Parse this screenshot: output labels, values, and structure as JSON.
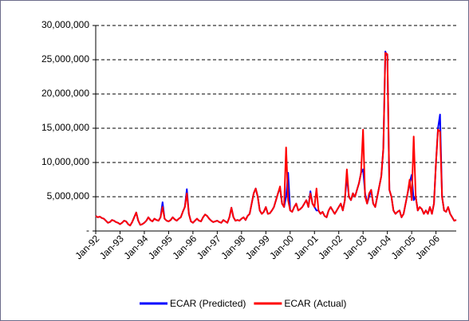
{
  "chart_data": {
    "type": "line",
    "categories": [
      "Jan-92",
      null,
      null,
      null,
      null,
      null,
      null,
      null,
      null,
      null,
      null,
      null,
      "Jan-93",
      null,
      null,
      null,
      null,
      null,
      null,
      null,
      null,
      null,
      null,
      null,
      "Jan-94",
      null,
      null,
      null,
      null,
      null,
      null,
      null,
      null,
      null,
      null,
      null,
      "Jan-95",
      null,
      null,
      null,
      null,
      null,
      null,
      null,
      null,
      null,
      null,
      null,
      "Jan-96",
      null,
      null,
      null,
      null,
      null,
      null,
      null,
      null,
      null,
      null,
      null,
      "Jan-97",
      null,
      null,
      null,
      null,
      null,
      null,
      null,
      null,
      null,
      null,
      null,
      "Jan-98",
      null,
      null,
      null,
      null,
      null,
      null,
      null,
      null,
      null,
      null,
      null,
      "Jan-99",
      null,
      null,
      null,
      null,
      null,
      null,
      null,
      null,
      null,
      null,
      null,
      "Jan-00",
      null,
      null,
      null,
      null,
      null,
      null,
      null,
      null,
      null,
      null,
      null,
      "Jan-01",
      null,
      null,
      null,
      null,
      null,
      null,
      null,
      null,
      null,
      null,
      null,
      "Jan-02",
      null,
      null,
      null,
      null,
      null,
      null,
      null,
      null,
      null,
      null,
      null,
      "Jan-03",
      null,
      null,
      null,
      null,
      null,
      null,
      null,
      null,
      null,
      null,
      null,
      "Jan-04",
      null,
      null,
      null,
      null,
      null,
      null,
      null,
      null,
      null,
      null,
      null,
      "Jan-05",
      null,
      null,
      null,
      null,
      null,
      null,
      null,
      null,
      null,
      null,
      null,
      "Jan-06",
      null,
      null,
      null,
      null,
      null,
      null,
      null,
      null,
      null,
      null
    ],
    "series": [
      {
        "name": "ECAR (Predicted)",
        "color": "#0000ff",
        "values": [
          2200000,
          2000000,
          2100000,
          1900000,
          1800000,
          1500000,
          1200000,
          1300000,
          1600000,
          1500000,
          1300000,
          1200000,
          1000000,
          1200000,
          1500000,
          1400000,
          1000000,
          800000,
          1300000,
          2000000,
          2700000,
          1500000,
          900000,
          1000000,
          1200000,
          1500000,
          2000000,
          1600000,
          1400000,
          1800000,
          1600000,
          1500000,
          2000000,
          4200000,
          1800000,
          1500000,
          1400000,
          1600000,
          2000000,
          1700000,
          1500000,
          1800000,
          2000000,
          2800000,
          3500000,
          6100000,
          2500000,
          1400000,
          1200000,
          1500000,
          1800000,
          1500000,
          1400000,
          2000000,
          2400000,
          2200000,
          1800000,
          1500000,
          1300000,
          1400000,
          1500000,
          1300000,
          1200000,
          1600000,
          1400000,
          1200000,
          2000000,
          3400000,
          2000000,
          1500000,
          1600000,
          1500000,
          1800000,
          2000000,
          1600000,
          2200000,
          2500000,
          4000000,
          5500000,
          6200000,
          5000000,
          3000000,
          2500000,
          2800000,
          3500000,
          2500000,
          2600000,
          3000000,
          3500000,
          4500000,
          5500000,
          6300000,
          4000000,
          3500000,
          5000000,
          8500000,
          3000000,
          2800000,
          3500000,
          4000000,
          3000000,
          3200000,
          3500000,
          4000000,
          4500000,
          3500000,
          5800000,
          4000000,
          3500000,
          3000000,
          3000000,
          2500000,
          2800000,
          2200000,
          2000000,
          3000000,
          3500000,
          3000000,
          2500000,
          3000000,
          3500000,
          4000000,
          3000000,
          4500000,
          8000000,
          5000000,
          4500000,
          5500000,
          5000000,
          6000000,
          7000000,
          8500000,
          9000000,
          5500000,
          4000000,
          5000000,
          6000000,
          4000000,
          3500000,
          5000000,
          6500000,
          8000000,
          12000000,
          26200000,
          25500000,
          6000000,
          5000000,
          3000000,
          2500000,
          2800000,
          3000000,
          2000000,
          2500000,
          4000000,
          5500000,
          7000000,
          8200000,
          4500000,
          5000000,
          3000000,
          3500000,
          3200000,
          2500000,
          3000000,
          2500000,
          3500000,
          2500000,
          4000000,
          10000000,
          15000000,
          17000000,
          5000000,
          3000000,
          2800000,
          3500000,
          2500000,
          2000000,
          1500000,
          1600000
        ]
      },
      {
        "name": "ECAR (Actual)",
        "color": "#ff0000",
        "values": [
          2200000,
          2000000,
          2100000,
          1900000,
          1800000,
          1500000,
          1200000,
          1300000,
          1600000,
          1500000,
          1300000,
          1200000,
          1000000,
          1200000,
          1500000,
          1400000,
          1000000,
          800000,
          1300000,
          2000000,
          2700000,
          1500000,
          900000,
          1000000,
          1200000,
          1500000,
          2000000,
          1600000,
          1400000,
          1800000,
          1600000,
          1500000,
          2000000,
          3500000,
          1800000,
          1500000,
          1400000,
          1600000,
          2000000,
          1700000,
          1500000,
          1800000,
          2000000,
          2800000,
          3500000,
          5500000,
          2500000,
          1400000,
          1200000,
          1500000,
          1800000,
          1500000,
          1400000,
          2000000,
          2400000,
          2200000,
          1800000,
          1500000,
          1300000,
          1400000,
          1500000,
          1300000,
          1200000,
          1600000,
          1400000,
          1200000,
          2000000,
          3400000,
          2000000,
          1500000,
          1600000,
          1500000,
          1800000,
          2000000,
          1600000,
          2200000,
          2500000,
          4000000,
          5500000,
          6200000,
          5000000,
          3000000,
          2500000,
          2800000,
          3500000,
          2500000,
          2600000,
          3000000,
          3500000,
          4500000,
          5500000,
          6500000,
          4000000,
          3500000,
          12200000,
          4500000,
          3000000,
          2800000,
          3500000,
          4000000,
          3000000,
          3200000,
          3500000,
          4000000,
          4500000,
          3500000,
          5500000,
          4000000,
          3500000,
          6200000,
          3000000,
          2500000,
          2800000,
          2200000,
          2000000,
          3000000,
          3500000,
          3000000,
          2500000,
          3000000,
          3500000,
          4000000,
          3000000,
          4500000,
          9000000,
          5000000,
          4500000,
          5500000,
          5000000,
          6000000,
          7000000,
          8500000,
          14800000,
          5000000,
          4000000,
          5500000,
          6000000,
          4000000,
          3500000,
          5000000,
          6500000,
          8000000,
          12000000,
          26000000,
          25800000,
          6000000,
          5000000,
          3000000,
          2500000,
          2800000,
          3000000,
          2000000,
          2500000,
          4000000,
          5500000,
          7500000,
          4500000,
          13800000,
          5000000,
          3000000,
          3500000,
          3200000,
          2500000,
          3000000,
          2500000,
          3500000,
          2500000,
          4000000,
          10000000,
          14800000,
          14500000,
          5000000,
          3000000,
          2800000,
          3500000,
          2500000,
          2000000,
          1500000,
          1600000
        ]
      }
    ],
    "ylim": [
      0,
      30000000
    ],
    "yticks": [
      {
        "value": 0,
        "label": "-"
      },
      {
        "value": 5000000,
        "label": "5,000,000"
      },
      {
        "value": 10000000,
        "label": "10,000,000"
      },
      {
        "value": 15000000,
        "label": "15,000,000"
      },
      {
        "value": 20000000,
        "label": "20,000,000"
      },
      {
        "value": 25000000,
        "label": "25,000,000"
      },
      {
        "value": 30000000,
        "label": "30,000,000"
      }
    ],
    "grid": true,
    "legend": "bottom"
  }
}
